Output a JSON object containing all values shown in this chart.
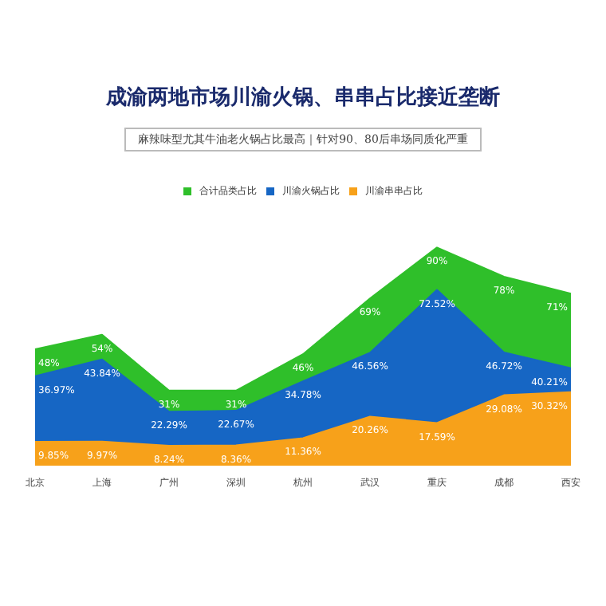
{
  "chart_data": {
    "type": "area",
    "title": "成渝两地市场川渝火锅、串串占比接近垄断",
    "subtitle": "麻辣味型尤其牛油老火锅占比最高｜针对90、80后串场同质化严重",
    "categories": [
      "北京",
      "上海",
      "广州",
      "深圳",
      "杭州",
      "武汉",
      "重庆",
      "成都",
      "西安"
    ],
    "series": [
      {
        "name": "合计品类占比",
        "color": "#2fbf2a",
        "values": [
          48,
          54,
          31,
          31,
          46,
          69,
          90,
          78,
          71
        ],
        "value_labels": [
          "48%",
          "54%",
          "31%",
          "31%",
          "46%",
          "69%",
          "90%",
          "78%",
          "71%"
        ]
      },
      {
        "name": "川渝火锅占比",
        "color": "#1666c4",
        "values": [
          36.97,
          43.84,
          22.29,
          22.67,
          34.78,
          46.56,
          72.52,
          46.72,
          40.21
        ],
        "value_labels": [
          "36.97%",
          "43.84%",
          "22.29%",
          "22.67%",
          "34.78%",
          "46.56%",
          "72.52%",
          "46.72%",
          "40.21%"
        ]
      },
      {
        "name": "川渝串串占比",
        "color": "#f7a11a",
        "values": [
          9.85,
          9.97,
          8.24,
          8.36,
          11.36,
          20.26,
          17.59,
          29.08,
          30.32
        ],
        "value_labels": [
          "9.85%",
          "9.97%",
          "8.24%",
          "8.36%",
          "11.36%",
          "20.26%",
          "17.59%",
          "29.08%",
          "30.32%"
        ]
      }
    ],
    "legend": "top",
    "grid": false
  }
}
